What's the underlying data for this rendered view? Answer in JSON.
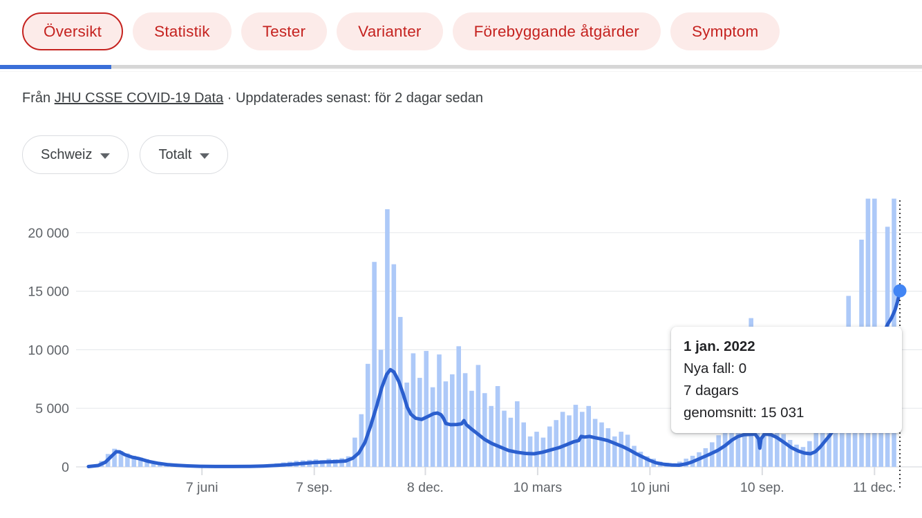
{
  "tabs": {
    "items": [
      {
        "label": "Översikt",
        "selected": true
      },
      {
        "label": "Statistik",
        "selected": false
      },
      {
        "label": "Tester",
        "selected": false
      },
      {
        "label": "Varianter",
        "selected": false
      },
      {
        "label": "Förebyggande åtgärder",
        "selected": false
      },
      {
        "label": "Symptom",
        "selected": false
      }
    ]
  },
  "source": {
    "prefix": "Från ",
    "link_text": "JHU CSSE COVID-19 Data",
    "suffix": " · Uppdaterades senast: för 2 dagar sedan"
  },
  "filters": {
    "region": "Schweiz",
    "metric": "Totalt"
  },
  "tooltip": {
    "date": "1 jan. 2022",
    "line1": "Nya fall: 0",
    "line2": "7 dagars",
    "line3": "genomsnitt: 15 031"
  },
  "colors": {
    "chip_red": "#c5221f",
    "chip_bg": "#fcebe9",
    "scroll_blue": "#3a6fd8",
    "bar_blue": "#adc9f8",
    "line_blue": "#2b5fce",
    "marker_blue": "#4285f4",
    "grid": "#e8eaed",
    "axis_text": "#5f6368",
    "crosshair": "#202124"
  },
  "chart_data": {
    "type": "bar",
    "description": "Daily new COVID-19 cases (bars) with 7-day average line, Switzerland, Mar 2020 - 1 Jan 2022",
    "ylim": [
      0,
      22900
    ],
    "grid": true,
    "y_ticks": [
      0,
      5000,
      10000,
      15000,
      20000
    ],
    "y_tick_labels": [
      "0",
      "5 000",
      "10 000",
      "15 000",
      "20 000"
    ],
    "x_tick_labels": [
      "7 juni",
      "7 sep.",
      "8 dec.",
      "10 mars",
      "10 juni",
      "10 sep.",
      "11 dec."
    ],
    "x_tick_days": [
      94,
      187,
      279,
      372,
      465,
      558,
      651
    ],
    "x_range_days": 672,
    "bar_pitch_days": 5.38,
    "series": [
      {
        "name": "Nya fall",
        "type": "bar",
        "values": [
          50,
          150,
          500,
          1100,
          1550,
          1350,
          1150,
          950,
          800,
          650,
          500,
          380,
          300,
          220,
          160,
          120,
          90,
          60,
          45,
          40,
          35,
          40,
          35,
          45,
          55,
          70,
          120,
          180,
          240,
          300,
          380,
          450,
          520,
          560,
          600,
          640,
          580,
          700,
          650,
          750,
          900,
          2500,
          4500,
          8800,
          17500,
          10000,
          22000,
          17300,
          12800,
          7200,
          9700,
          7600,
          9900,
          6800,
          9600,
          7300,
          7900,
          10300,
          8000,
          6500,
          8700,
          6300,
          5200,
          6900,
          4800,
          4200,
          5600,
          3800,
          2600,
          3000,
          2500,
          3450,
          4000,
          4700,
          4400,
          5300,
          4700,
          5200,
          4100,
          3800,
          3300,
          2600,
          3000,
          2750,
          1800,
          1300,
          900,
          700,
          450,
          350,
          300,
          450,
          700,
          950,
          1250,
          1600,
          2100,
          2700,
          3400,
          3900,
          4200,
          4000,
          12700,
          3800,
          4100,
          3900,
          3400,
          2800,
          2300,
          1900,
          1700,
          2200,
          2900,
          3800,
          4900,
          6200,
          8000,
          14600,
          9500,
          19400,
          22900,
          22900,
          11000,
          20500,
          22900
        ]
      },
      {
        "name": "7 dagars genomsnitt",
        "type": "line",
        "points": [
          [
            0,
            30
          ],
          [
            8,
            120
          ],
          [
            14,
            400
          ],
          [
            19,
            900
          ],
          [
            23,
            1300
          ],
          [
            26,
            1280
          ],
          [
            30,
            1050
          ],
          [
            36,
            830
          ],
          [
            42,
            700
          ],
          [
            50,
            460
          ],
          [
            58,
            300
          ],
          [
            66,
            190
          ],
          [
            74,
            130
          ],
          [
            82,
            90
          ],
          [
            92,
            55
          ],
          [
            105,
            38
          ],
          [
            120,
            35
          ],
          [
            134,
            48
          ],
          [
            145,
            75
          ],
          [
            156,
            130
          ],
          [
            168,
            215
          ],
          [
            178,
            300
          ],
          [
            187,
            380
          ],
          [
            196,
            420
          ],
          [
            205,
            450
          ],
          [
            213,
            500
          ],
          [
            219,
            750
          ],
          [
            224,
            1200
          ],
          [
            229,
            2100
          ],
          [
            234,
            3600
          ],
          [
            239,
            5300
          ],
          [
            243,
            6800
          ],
          [
            247,
            7900
          ],
          [
            250,
            8300
          ],
          [
            253,
            8100
          ],
          [
            257,
            7300
          ],
          [
            261,
            6100
          ],
          [
            264,
            5100
          ],
          [
            267,
            4500
          ],
          [
            271,
            4150
          ],
          [
            276,
            4050
          ],
          [
            281,
            4300
          ],
          [
            286,
            4550
          ],
          [
            289,
            4600
          ],
          [
            292,
            4450
          ],
          [
            294,
            4150
          ],
          [
            296,
            3700
          ],
          [
            300,
            3600
          ],
          [
            305,
            3620
          ],
          [
            309,
            3680
          ],
          [
            311,
            3950
          ],
          [
            313,
            3600
          ],
          [
            317,
            3250
          ],
          [
            322,
            2850
          ],
          [
            328,
            2350
          ],
          [
            334,
            2000
          ],
          [
            341,
            1700
          ],
          [
            348,
            1400
          ],
          [
            355,
            1250
          ],
          [
            362,
            1150
          ],
          [
            369,
            1120
          ],
          [
            376,
            1250
          ],
          [
            383,
            1450
          ],
          [
            390,
            1650
          ],
          [
            396,
            1900
          ],
          [
            402,
            2150
          ],
          [
            406,
            2250
          ],
          [
            408,
            2600
          ],
          [
            411,
            2550
          ],
          [
            415,
            2600
          ],
          [
            419,
            2500
          ],
          [
            424,
            2400
          ],
          [
            430,
            2250
          ],
          [
            436,
            2000
          ],
          [
            442,
            1750
          ],
          [
            448,
            1450
          ],
          [
            454,
            1100
          ],
          [
            459,
            850
          ],
          [
            465,
            550
          ],
          [
            470,
            350
          ],
          [
            476,
            230
          ],
          [
            483,
            160
          ],
          [
            489,
            150
          ],
          [
            495,
            260
          ],
          [
            500,
            430
          ],
          [
            505,
            650
          ],
          [
            510,
            880
          ],
          [
            515,
            1100
          ],
          [
            521,
            1400
          ],
          [
            527,
            1800
          ],
          [
            533,
            2300
          ],
          [
            538,
            2600
          ],
          [
            543,
            2750
          ],
          [
            548,
            2780
          ],
          [
            552,
            2800
          ],
          [
            555,
            2400
          ],
          [
            556,
            1600
          ],
          [
            557,
            2400
          ],
          [
            560,
            2800
          ],
          [
            565,
            2760
          ],
          [
            570,
            2520
          ],
          [
            576,
            2100
          ],
          [
            582,
            1650
          ],
          [
            588,
            1350
          ],
          [
            593,
            1180
          ],
          [
            598,
            1120
          ],
          [
            602,
            1300
          ],
          [
            606,
            1700
          ],
          [
            610,
            2200
          ],
          [
            614,
            2700
          ],
          [
            618,
            3300
          ],
          [
            623,
            4100
          ],
          [
            628,
            5000
          ],
          [
            633,
            5800
          ],
          [
            638,
            6600
          ],
          [
            643,
            7600
          ],
          [
            648,
            8800
          ],
          [
            653,
            10000
          ],
          [
            658,
            11300
          ],
          [
            662,
            12200
          ],
          [
            665,
            12700
          ],
          [
            668,
            13400
          ],
          [
            670,
            14100
          ],
          [
            672,
            15031
          ]
        ]
      }
    ],
    "marker": {
      "day": 672,
      "value": 15031
    }
  }
}
